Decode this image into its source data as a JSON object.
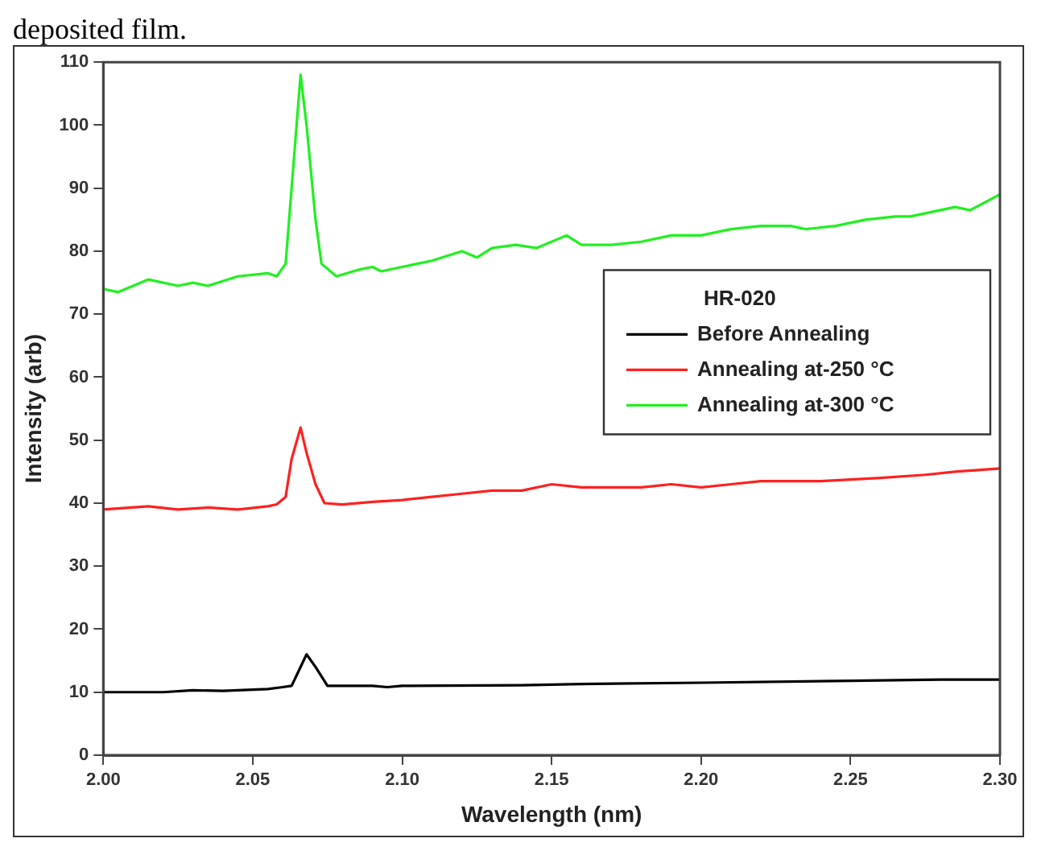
{
  "chart_data": {
    "type": "line",
    "xlabel": "Wavelength (nm)",
    "ylabel": "Intensity (arb)",
    "legend_title": "HR-020",
    "legend": "right",
    "grid": false,
    "marker": "none",
    "line_style": "solid",
    "annotations": [
      "deposited film."
    ],
    "xlim": [
      2.0,
      2.3
    ],
    "xticks": [
      {
        "value": 2.0,
        "label": "2.00"
      },
      {
        "value": 2.05,
        "label": "2.05"
      },
      {
        "value": 2.1,
        "label": "2.10"
      },
      {
        "value": 2.15,
        "label": "2.15"
      },
      {
        "value": 2.2,
        "label": "2.20"
      },
      {
        "value": 2.25,
        "label": "2.25"
      },
      {
        "value": 2.3,
        "label": "2.30"
      }
    ],
    "ylim": [
      0,
      110
    ],
    "yticks": [
      0,
      10,
      20,
      30,
      40,
      50,
      60,
      70,
      80,
      90,
      100,
      110
    ],
    "series": [
      {
        "name": "Before Annealing",
        "color": "#000000",
        "x": [
          2.0,
          2.02,
          2.03,
          2.04,
          2.055,
          2.06,
          2.063,
          2.066,
          2.068,
          2.071,
          2.075,
          2.09,
          2.095,
          2.1,
          2.14,
          2.16,
          2.2,
          2.25,
          2.28,
          2.3
        ],
        "values": [
          10,
          10,
          10.3,
          10.2,
          10.5,
          10.8,
          11,
          14,
          16,
          14,
          11,
          11,
          10.8,
          11,
          11.1,
          11.3,
          11.5,
          11.8,
          12,
          12
        ]
      },
      {
        "name": "Annealing at-250 °C",
        "color": "#ff2020",
        "x": [
          2.0,
          2.015,
          2.025,
          2.035,
          2.045,
          2.055,
          2.058,
          2.061,
          2.063,
          2.066,
          2.068,
          2.071,
          2.074,
          2.08,
          2.09,
          2.1,
          2.11,
          2.12,
          2.13,
          2.14,
          2.15,
          2.16,
          2.18,
          2.19,
          2.2,
          2.21,
          2.22,
          2.24,
          2.26,
          2.275,
          2.285,
          2.3
        ],
        "values": [
          39,
          39.5,
          39,
          39.3,
          39,
          39.5,
          39.8,
          41,
          47,
          52,
          48,
          43,
          40,
          39.8,
          40.2,
          40.5,
          41,
          41.5,
          42,
          42,
          43,
          42.5,
          42.5,
          43,
          42.5,
          43,
          43.5,
          43.5,
          44,
          44.5,
          45,
          45.5
        ]
      },
      {
        "name": "Annealing at-300 °C",
        "color": "#20f020",
        "x": [
          2.0,
          2.005,
          2.015,
          2.025,
          2.03,
          2.035,
          2.045,
          2.055,
          2.058,
          2.061,
          2.063,
          2.066,
          2.068,
          2.071,
          2.073,
          2.078,
          2.085,
          2.09,
          2.093,
          2.1,
          2.11,
          2.12,
          2.125,
          2.13,
          2.138,
          2.145,
          2.155,
          2.16,
          2.17,
          2.18,
          2.19,
          2.2,
          2.21,
          2.22,
          2.23,
          2.235,
          2.245,
          2.255,
          2.265,
          2.27,
          2.285,
          2.29,
          2.3
        ],
        "values": [
          74,
          73.5,
          75.5,
          74.5,
          75,
          74.5,
          76,
          76.5,
          76,
          78,
          90,
          108,
          100,
          85,
          78,
          76,
          77,
          77.5,
          76.8,
          77.5,
          78.5,
          80,
          79,
          80.5,
          81,
          80.5,
          82.5,
          81,
          81,
          81.5,
          82.5,
          82.5,
          83.5,
          84,
          84,
          83.5,
          84,
          85,
          85.5,
          85.5,
          87,
          86.5,
          89
        ]
      }
    ]
  }
}
